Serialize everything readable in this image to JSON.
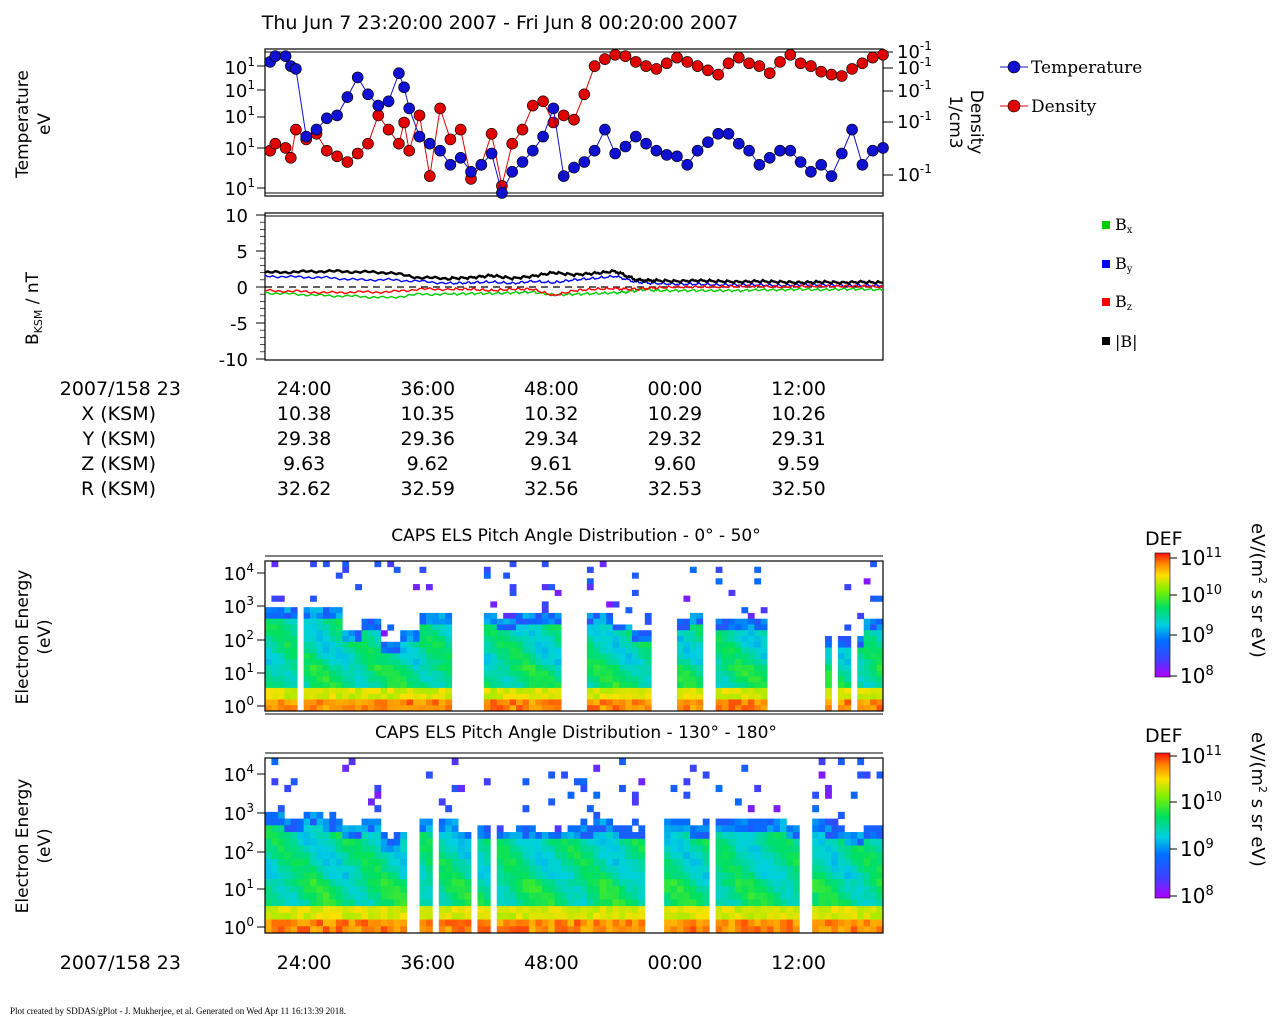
{
  "page_title": "Thu Jun 7 23:20:00 2007 - Fri Jun 8 00:20:00 2007",
  "footer": "Plot created by SDDAS/gPlot - J. Mukherjee, et al.  Generated on Wed Apr 11 16:13:39 2018.",
  "colors": {
    "temperature": "#1010d0",
    "density": "#e00000",
    "bx": "#00cc00",
    "by": "#0000ff",
    "bz": "#ff0000",
    "btot": "#000000"
  },
  "chart_data": [
    {
      "type": "scatter",
      "panel": "plasma-moments",
      "ylabel": [
        "Temperature",
        "eV"
      ],
      "y2label": [
        "Density",
        "1/cm3"
      ],
      "yticks": [
        "10",
        "10",
        "10",
        "10",
        "10"
      ],
      "ytick_exp": [
        "1",
        "1",
        "1",
        "1",
        "1"
      ],
      "y2ticks": [
        "10",
        "10",
        "10",
        "10",
        "10"
      ],
      "y2tick_exp": [
        "-1",
        "-1",
        "-1",
        "-1",
        "-1"
      ],
      "legend": [
        "Temperature",
        "Density"
      ],
      "legend_position": "right",
      "x_minutes": [
        0.5,
        1,
        2,
        2.5,
        3,
        4,
        5,
        6,
        7,
        8,
        9,
        10,
        11,
        12,
        13,
        13.5,
        14,
        15,
        16,
        17,
        18,
        19,
        20,
        21,
        22,
        23,
        24,
        25,
        26,
        27,
        28,
        29,
        30,
        31,
        32,
        33,
        34,
        35,
        36,
        37,
        38,
        39,
        40,
        41,
        42,
        43,
        44,
        45,
        46,
        47,
        48,
        49,
        50,
        51,
        52,
        53,
        54,
        55,
        56,
        57,
        58,
        59,
        60
      ],
      "series": [
        {
          "name": "Temperature",
          "values": [
            0.93,
            0.97,
            0.97,
            0.9,
            0.88,
            0.4,
            0.45,
            0.53,
            0.55,
            0.68,
            0.82,
            0.7,
            0.62,
            0.65,
            0.85,
            0.75,
            0.6,
            0.4,
            0.35,
            0.3,
            0.2,
            0.25,
            0.15,
            0.2,
            0.28,
            0.0,
            0.15,
            0.22,
            0.3,
            0.4,
            0.6,
            0.12,
            0.18,
            0.22,
            0.3,
            0.45,
            0.28,
            0.33,
            0.4,
            0.35,
            0.3,
            0.27,
            0.26,
            0.2,
            0.3,
            0.36,
            0.42,
            0.42,
            0.35,
            0.3,
            0.2,
            0.25,
            0.3,
            0.3,
            0.22,
            0.15,
            0.2,
            0.12,
            0.28,
            0.45,
            0.2,
            0.3,
            0.32
          ]
        },
        {
          "name": "Density",
          "values": [
            0.3,
            0.35,
            0.32,
            0.25,
            0.45,
            0.38,
            0.42,
            0.3,
            0.26,
            0.22,
            0.28,
            0.35,
            0.55,
            0.45,
            0.35,
            0.5,
            0.3,
            0.55,
            0.12,
            0.6,
            0.38,
            0.45,
            0.1,
            0.2,
            0.42,
            0.05,
            0.35,
            0.45,
            0.62,
            0.65,
            0.5,
            0.55,
            0.52,
            0.7,
            0.9,
            0.95,
            0.98,
            0.97,
            0.93,
            0.9,
            0.88,
            0.92,
            0.96,
            0.93,
            0.9,
            0.87,
            0.84,
            0.92,
            0.96,
            0.92,
            0.9,
            0.85,
            0.93,
            0.98,
            0.92,
            0.9,
            0.86,
            0.84,
            0.83,
            0.88,
            0.92,
            0.96,
            0.98
          ]
        }
      ]
    },
    {
      "type": "line",
      "panel": "magnetic-field",
      "ylabel": "BKSM / nT",
      "yticks": [
        10,
        5,
        0,
        -5,
        -10
      ],
      "ylim": [
        -10,
        10
      ],
      "legend": [
        "Bx",
        "By",
        "Bz",
        "|B|"
      ],
      "legend_position": "right",
      "x_minutes": [
        0,
        3,
        6,
        9,
        12,
        15,
        18,
        20,
        22,
        24,
        26,
        28,
        30,
        32,
        34,
        35,
        36,
        37,
        38,
        40,
        42,
        44,
        46,
        48,
        50,
        52,
        54,
        56,
        58,
        60
      ],
      "series": [
        {
          "name": "Bx",
          "values": [
            -0.8,
            -1.0,
            -1.2,
            -1.3,
            -1.5,
            -1.0,
            -1.0,
            -0.9,
            -0.9,
            -0.8,
            -0.7,
            -1.1,
            -1.0,
            -0.9,
            -0.8,
            -0.7,
            -0.5,
            -0.3,
            -0.5,
            -0.5,
            -0.5,
            -0.5,
            -0.5,
            -0.4,
            -0.4,
            -0.3,
            -0.4,
            -0.3,
            -0.3,
            -0.4
          ]
        },
        {
          "name": "By",
          "values": [
            1.5,
            1.4,
            1.3,
            1.0,
            1.0,
            0.8,
            0.5,
            0.6,
            0.7,
            0.5,
            0.8,
            0.6,
            1.0,
            1.2,
            1.5,
            1.1,
            0.7,
            0.6,
            0.5,
            0.4,
            0.4,
            0.3,
            0.3,
            0.3,
            0.2,
            0.3,
            0.3,
            0.2,
            0.2,
            0.2
          ]
        },
        {
          "name": "Bz",
          "values": [
            -0.5,
            -0.6,
            -0.8,
            -0.7,
            -0.7,
            -0.3,
            -0.3,
            -0.3,
            -0.5,
            -0.3,
            -0.3,
            -1.2,
            -0.5,
            -0.3,
            -0.2,
            -0.3,
            -0.3,
            -0.2,
            -0.1,
            0.0,
            0.0,
            0.0,
            0.1,
            0.1,
            0.0,
            0.1,
            0.1,
            0.1,
            0.1,
            0.0
          ]
        },
        {
          "name": "|B|",
          "values": [
            2.0,
            2.1,
            2.2,
            2.1,
            2.0,
            1.3,
            1.2,
            1.3,
            1.6,
            1.2,
            1.5,
            2.0,
            1.7,
            1.9,
            2.2,
            1.6,
            1.0,
            0.9,
            0.9,
            0.8,
            0.9,
            0.8,
            0.7,
            0.8,
            0.7,
            0.6,
            0.7,
            0.6,
            0.7,
            0.6
          ]
        }
      ]
    },
    {
      "type": "heatmap",
      "panel": "pad-0-50",
      "title": "CAPS ELS Pitch Angle Distribution - 0° - 50°",
      "ylabel": [
        "Electron Energy",
        "(eV)"
      ],
      "yticks_exp": [
        "4",
        "3",
        "2",
        "1",
        "0"
      ],
      "colorbar_title": "DEF",
      "colorbar_ticks_exp": [
        "11",
        "10",
        "9",
        "8"
      ],
      "colorbar_unit": "eV/(m2 s sr eV)",
      "data_gaps_minutes": [
        [
          3,
          4
        ],
        [
          18,
          21
        ],
        [
          29,
          31
        ],
        [
          37.5,
          40
        ],
        [
          42.5,
          44
        ],
        [
          49,
          54.5
        ],
        [
          55,
          55.5
        ],
        [
          57,
          57.5
        ]
      ],
      "upper_cutoff_exp": [
        2.6,
        2.6,
        2.6,
        2.6,
        2.0,
        2.3,
        1.6,
        2.0,
        2.5,
        2.5,
        2.2,
        2.5,
        2.3,
        2.5,
        2.4,
        2.4,
        2.5,
        2.5,
        2.2,
        2.0,
        2.3,
        2.3,
        2.4,
        2.3,
        2.3,
        2.3,
        2.3,
        2.3,
        2.3,
        1.8,
        1.8,
        2.3
      ]
    },
    {
      "type": "heatmap",
      "panel": "pad-130-180",
      "title": "CAPS ELS Pitch Angle Distribution - 130° - 180°",
      "ylabel": [
        "Electron Energy",
        "(eV)"
      ],
      "yticks_exp": [
        "4",
        "3",
        "2",
        "1",
        "0"
      ],
      "colorbar_title": "DEF",
      "colorbar_ticks_exp": [
        "11",
        "10",
        "9",
        "8"
      ],
      "colorbar_unit": "eV/(m2 s sr eV)",
      "data_gaps_minutes": [
        [
          14,
          15
        ],
        [
          16.5,
          17
        ],
        [
          20,
          20.5
        ],
        [
          22,
          22.5
        ],
        [
          33.5,
          34
        ],
        [
          37,
          39
        ],
        [
          43,
          44
        ],
        [
          52,
          53
        ]
      ],
      "upper_cutoff_exp": [
        2.6,
        2.5,
        2.6,
        2.4,
        2.3,
        2.5,
        2.0,
        2.2,
        2.4,
        2.4,
        2.2,
        2.3,
        2.2,
        2.3,
        2.2,
        2.2,
        2.3,
        2.4,
        2.3,
        2.2,
        2.4,
        2.4,
        2.3,
        2.4,
        2.5,
        2.4,
        2.4,
        2.3,
        2.4,
        2.3,
        2.1,
        2.3
      ]
    }
  ],
  "time_axis": {
    "label": "2007/158 23",
    "ticks": [
      "24:00",
      "36:00",
      "48:00",
      "00:00",
      "12:00"
    ],
    "tick_minutes": [
      3.8,
      15.8,
      27.8,
      39.8,
      51.8
    ]
  },
  "ephemeris": {
    "rows": [
      {
        "label": "X (KSM)",
        "values": [
          "10.38",
          "10.35",
          "10.32",
          "10.29",
          "10.26"
        ]
      },
      {
        "label": "Y (KSM)",
        "values": [
          "29.38",
          "29.36",
          "29.34",
          "29.32",
          "29.31"
        ]
      },
      {
        "label": "Z (KSM)",
        "values": [
          "9.63",
          "9.62",
          "9.61",
          "9.60",
          "9.59"
        ]
      },
      {
        "label": "R (KSM)",
        "values": [
          "32.62",
          "32.59",
          "32.56",
          "32.53",
          "32.50"
        ]
      }
    ]
  }
}
